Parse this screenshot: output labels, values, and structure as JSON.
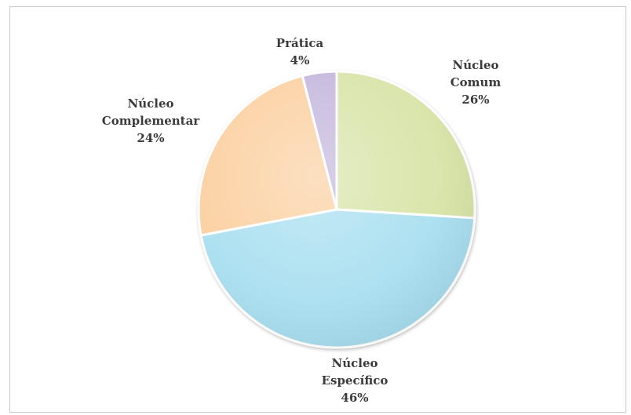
{
  "chart_data": {
    "type": "pie",
    "title": "",
    "slices": [
      {
        "label": "Núcleo Comum",
        "label_lines": [
          "Núcleo",
          "Comum",
          "26%"
        ],
        "value": 26,
        "color": "#d7e4a7"
      },
      {
        "label": "Núcleo Específico",
        "label_lines": [
          "Núcleo",
          "Específico",
          "46%"
        ],
        "value": 46,
        "color": "#a9dff0"
      },
      {
        "label": "Núcleo Complementar",
        "label_lines": [
          "Núcleo",
          "Complementar",
          "24%"
        ],
        "value": 24,
        "color": "#fbcf9f"
      },
      {
        "label": "Prática",
        "label_lines": [
          "Prática",
          "4%"
        ],
        "value": 4,
        "color": "#c3b6dc"
      }
    ],
    "start_angle_deg": 0,
    "direction": "clockwise",
    "legend": "none"
  }
}
